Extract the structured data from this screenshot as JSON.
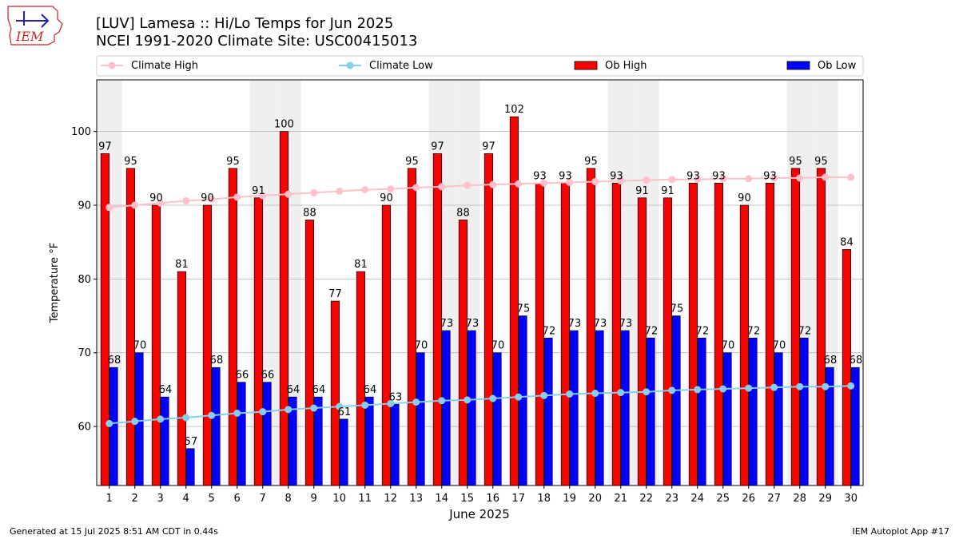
{
  "header": {
    "title_line1": "[LUV] Lamesa :: Hi/Lo Temps for Jun 2025",
    "title_line2": "NCEI 1991-2020 Climate Site: USC00415013"
  },
  "logo": {
    "text": "IEM"
  },
  "footer": {
    "left": "Generated at 15 Jul 2025 8:51 AM CDT in 0.44s",
    "right": "IEM Autoplot App #17"
  },
  "colors": {
    "ob_high": "#ff0000",
    "ob_low": "#0000ff",
    "climate_high": "#ffc0cb",
    "climate_low": "#87ceeb",
    "weekend_band": "#efefef",
    "grid": "#b0b0b0"
  },
  "chart_data": {
    "type": "bar",
    "xlabel": "June 2025",
    "ylabel": "Temperature °F",
    "ylim": [
      52,
      107
    ],
    "yticks": [
      60,
      70,
      80,
      90,
      100
    ],
    "grid": true,
    "legend_position": "top",
    "categories": [
      "1",
      "2",
      "3",
      "4",
      "5",
      "6",
      "7",
      "8",
      "9",
      "10",
      "11",
      "12",
      "13",
      "14",
      "15",
      "16",
      "17",
      "18",
      "19",
      "20",
      "21",
      "22",
      "23",
      "24",
      "25",
      "26",
      "27",
      "28",
      "29",
      "30"
    ],
    "weekend_days": [
      1,
      7,
      8,
      14,
      15,
      21,
      22,
      28,
      29
    ],
    "series": [
      {
        "name": "Climate High",
        "kind": "line",
        "values": [
          89.7,
          90.0,
          90.3,
          90.6,
          90.8,
          91.1,
          91.3,
          91.5,
          91.7,
          91.9,
          92.1,
          92.2,
          92.4,
          92.5,
          92.7,
          92.8,
          92.9,
          93.0,
          93.1,
          93.2,
          93.3,
          93.4,
          93.5,
          93.5,
          93.6,
          93.6,
          93.7,
          93.7,
          93.8,
          93.8
        ]
      },
      {
        "name": "Climate Low",
        "kind": "line",
        "values": [
          60.4,
          60.7,
          61.0,
          61.2,
          61.5,
          61.8,
          62.0,
          62.3,
          62.5,
          62.7,
          62.9,
          63.1,
          63.3,
          63.5,
          63.6,
          63.8,
          64.0,
          64.2,
          64.4,
          64.5,
          64.6,
          64.7,
          64.9,
          65.0,
          65.1,
          65.2,
          65.3,
          65.4,
          65.4,
          65.5
        ]
      },
      {
        "name": "Ob High",
        "kind": "bar",
        "values": [
          97,
          95,
          90,
          81,
          90,
          95,
          91,
          100,
          88,
          77,
          81,
          90,
          95,
          97,
          88,
          97,
          102,
          93,
          93,
          95,
          93,
          91,
          91,
          93,
          93,
          90,
          93,
          95,
          95,
          84
        ]
      },
      {
        "name": "Ob Low",
        "kind": "bar",
        "values": [
          68,
          70,
          64,
          57,
          68,
          66,
          66,
          64,
          64,
          61,
          64,
          63,
          70,
          73,
          73,
          70,
          75,
          72,
          73,
          73,
          73,
          72,
          75,
          72,
          70,
          72,
          70,
          72,
          68,
          68
        ]
      }
    ]
  }
}
